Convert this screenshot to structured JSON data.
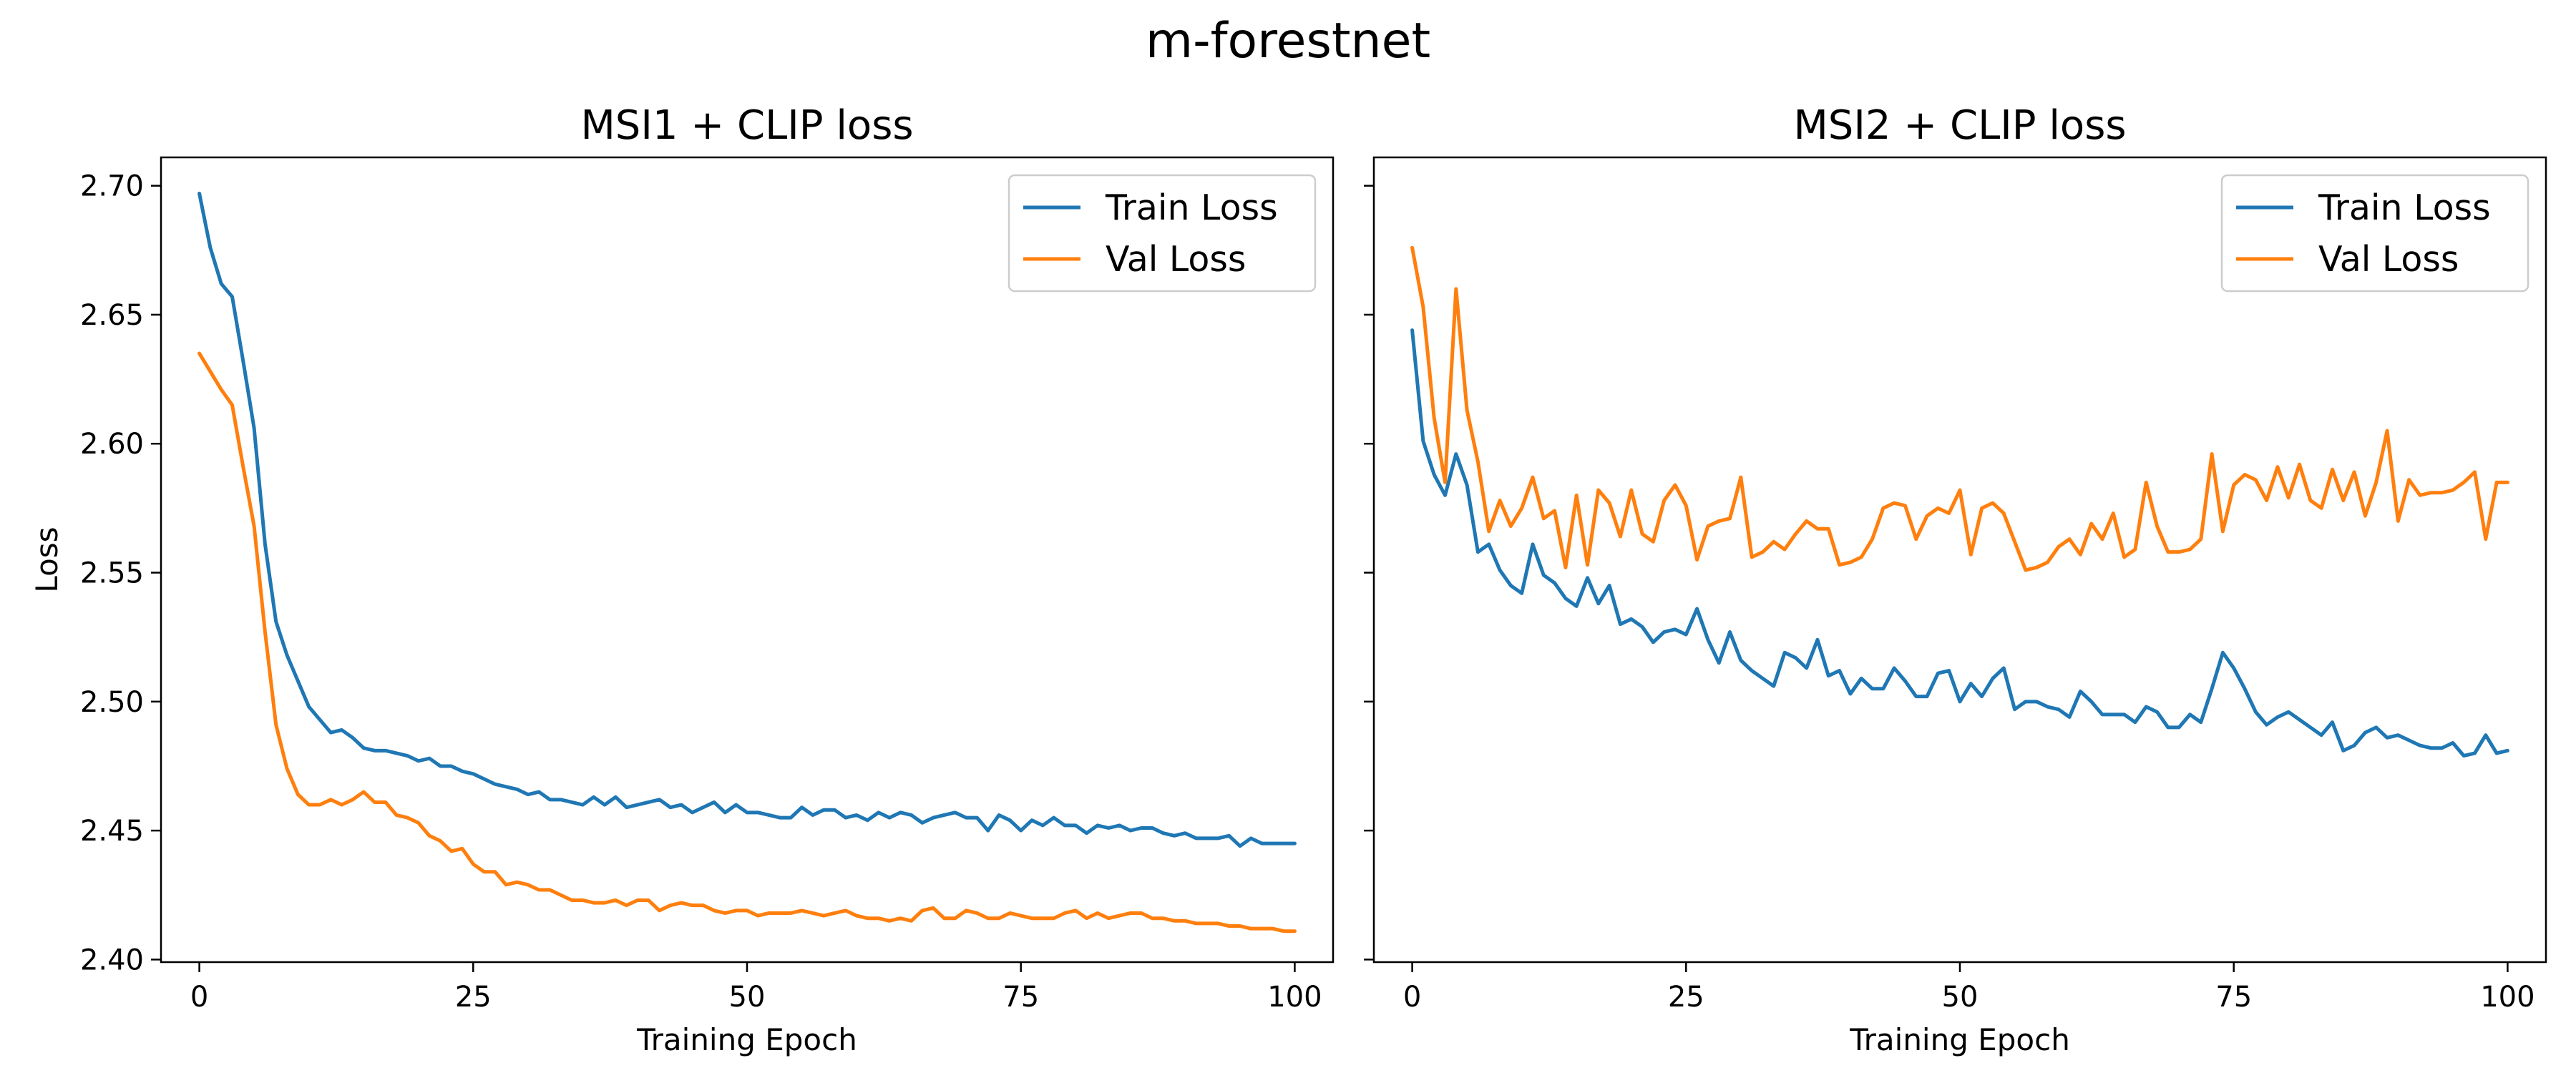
{
  "figure": {
    "title": "m-forestnet"
  },
  "chart_data": [
    {
      "type": "line",
      "title": "MSI1 + CLIP loss",
      "xlabel": "Training Epoch",
      "ylabel": "Loss",
      "xlim": [
        -3.5,
        103.5
      ],
      "ylim": [
        2.399,
        2.711
      ],
      "xticks": [
        0,
        25,
        50,
        75,
        100
      ],
      "yticks": [
        2.4,
        2.45,
        2.5,
        2.55,
        2.6,
        2.65,
        2.7
      ],
      "ytick_labels": [
        "2.40",
        "2.45",
        "2.50",
        "2.55",
        "2.60",
        "2.65",
        "2.70"
      ],
      "grid": false,
      "legend": "upper right",
      "series": [
        {
          "name": "Train Loss",
          "color": "#1f77b4",
          "x_start": 0,
          "values": [
            2.697,
            2.676,
            2.662,
            2.657,
            2.632,
            2.606,
            2.561,
            2.531,
            2.518,
            2.508,
            2.498,
            2.493,
            2.488,
            2.489,
            2.486,
            2.482,
            2.481,
            2.481,
            2.48,
            2.479,
            2.477,
            2.478,
            2.475,
            2.475,
            2.473,
            2.472,
            2.47,
            2.468,
            2.467,
            2.466,
            2.464,
            2.465,
            2.462,
            2.462,
            2.461,
            2.46,
            2.463,
            2.46,
            2.463,
            2.459,
            2.46,
            2.461,
            2.462,
            2.459,
            2.46,
            2.457,
            2.459,
            2.461,
            2.457,
            2.46,
            2.457,
            2.457,
            2.456,
            2.455,
            2.455,
            2.459,
            2.456,
            2.458,
            2.458,
            2.455,
            2.456,
            2.454,
            2.457,
            2.455,
            2.457,
            2.456,
            2.453,
            2.455,
            2.456,
            2.457,
            2.455,
            2.455,
            2.45,
            2.456,
            2.454,
            2.45,
            2.454,
            2.452,
            2.455,
            2.452,
            2.452,
            2.449,
            2.452,
            2.451,
            2.452,
            2.45,
            2.451,
            2.451,
            2.449,
            2.448,
            2.449,
            2.447,
            2.447,
            2.447,
            2.448,
            2.444,
            2.447,
            2.445,
            2.445,
            2.445,
            2.445
          ]
        },
        {
          "name": "Val Loss",
          "color": "#ff7f0e",
          "x_start": 0,
          "values": [
            2.635,
            2.628,
            2.621,
            2.615,
            2.591,
            2.568,
            2.527,
            2.491,
            2.474,
            2.464,
            2.46,
            2.46,
            2.462,
            2.46,
            2.462,
            2.465,
            2.461,
            2.461,
            2.456,
            2.455,
            2.453,
            2.448,
            2.446,
            2.442,
            2.443,
            2.437,
            2.434,
            2.434,
            2.429,
            2.43,
            2.429,
            2.427,
            2.427,
            2.425,
            2.423,
            2.423,
            2.422,
            2.422,
            2.423,
            2.421,
            2.423,
            2.423,
            2.419,
            2.421,
            2.422,
            2.421,
            2.421,
            2.419,
            2.418,
            2.419,
            2.419,
            2.417,
            2.418,
            2.418,
            2.418,
            2.419,
            2.418,
            2.417,
            2.418,
            2.419,
            2.417,
            2.416,
            2.416,
            2.415,
            2.416,
            2.415,
            2.419,
            2.42,
            2.416,
            2.416,
            2.419,
            2.418,
            2.416,
            2.416,
            2.418,
            2.417,
            2.416,
            2.416,
            2.416,
            2.418,
            2.419,
            2.416,
            2.418,
            2.416,
            2.417,
            2.418,
            2.418,
            2.416,
            2.416,
            2.415,
            2.415,
            2.414,
            2.414,
            2.414,
            2.413,
            2.413,
            2.412,
            2.412,
            2.412,
            2.411,
            2.411
          ]
        }
      ]
    },
    {
      "type": "line",
      "title": "MSI2 + CLIP loss",
      "xlabel": "Training Epoch",
      "ylabel": "",
      "xlim": [
        -3.5,
        103.5
      ],
      "ylim": [
        2.399,
        2.711
      ],
      "xticks": [
        0,
        25,
        50,
        75,
        100
      ],
      "yticks": [
        2.4,
        2.45,
        2.5,
        2.55,
        2.6,
        2.65,
        2.7
      ],
      "ytick_labels": [],
      "grid": false,
      "legend": "upper right",
      "series": [
        {
          "name": "Train Loss",
          "color": "#1f77b4",
          "x_start": 0,
          "values": [
            2.644,
            2.601,
            2.588,
            2.58,
            2.596,
            2.584,
            2.558,
            2.561,
            2.551,
            2.545,
            2.542,
            2.561,
            2.549,
            2.546,
            2.54,
            2.537,
            2.548,
            2.538,
            2.545,
            2.53,
            2.532,
            2.529,
            2.523,
            2.527,
            2.528,
            2.526,
            2.536,
            2.524,
            2.515,
            2.527,
            2.516,
            2.512,
            2.509,
            2.506,
            2.519,
            2.517,
            2.513,
            2.524,
            2.51,
            2.512,
            2.503,
            2.509,
            2.505,
            2.505,
            2.513,
            2.508,
            2.502,
            2.502,
            2.511,
            2.512,
            2.5,
            2.507,
            2.502,
            2.509,
            2.513,
            2.497,
            2.5,
            2.5,
            2.498,
            2.497,
            2.494,
            2.504,
            2.5,
            2.495,
            2.495,
            2.495,
            2.492,
            2.498,
            2.496,
            2.49,
            2.49,
            2.495,
            2.492,
            2.505,
            2.519,
            2.513,
            2.505,
            2.496,
            2.491,
            2.494,
            2.496,
            2.493,
            2.49,
            2.487,
            2.492,
            2.481,
            2.483,
            2.488,
            2.49,
            2.486,
            2.487,
            2.485,
            2.483,
            2.482,
            2.482,
            2.484,
            2.479,
            2.48,
            2.487,
            2.48,
            2.481
          ]
        },
        {
          "name": "Val Loss",
          "color": "#ff7f0e",
          "x_start": 0,
          "values": [
            2.676,
            2.653,
            2.61,
            2.585,
            2.66,
            2.613,
            2.593,
            2.566,
            2.578,
            2.568,
            2.575,
            2.587,
            2.571,
            2.574,
            2.552,
            2.58,
            2.553,
            2.582,
            2.577,
            2.564,
            2.582,
            2.565,
            2.562,
            2.578,
            2.584,
            2.576,
            2.555,
            2.568,
            2.57,
            2.571,
            2.587,
            2.556,
            2.558,
            2.562,
            2.559,
            2.565,
            2.57,
            2.567,
            2.567,
            2.553,
            2.554,
            2.556,
            2.563,
            2.575,
            2.577,
            2.576,
            2.563,
            2.572,
            2.575,
            2.573,
            2.582,
            2.557,
            2.575,
            2.577,
            2.573,
            2.562,
            2.551,
            2.552,
            2.554,
            2.56,
            2.563,
            2.557,
            2.569,
            2.563,
            2.573,
            2.556,
            2.559,
            2.585,
            2.568,
            2.558,
            2.558,
            2.559,
            2.563,
            2.596,
            2.566,
            2.584,
            2.588,
            2.586,
            2.578,
            2.591,
            2.579,
            2.592,
            2.578,
            2.575,
            2.59,
            2.578,
            2.589,
            2.572,
            2.585,
            2.605,
            2.57,
            2.586,
            2.58,
            2.581,
            2.581,
            2.582,
            2.585,
            2.589,
            2.563,
            2.585,
            2.585
          ]
        }
      ]
    }
  ]
}
